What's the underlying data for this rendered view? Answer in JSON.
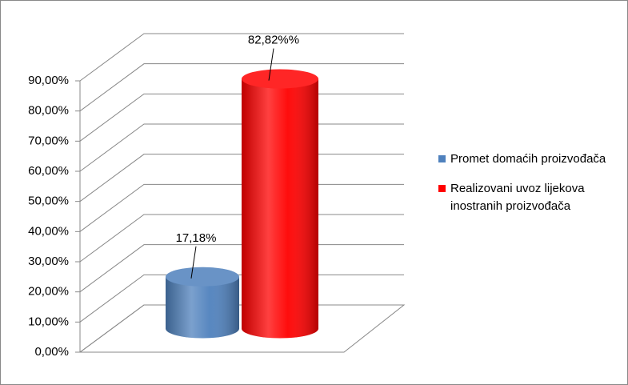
{
  "chart_data": {
    "type": "bar3d",
    "categories": [
      null
    ],
    "series": [
      {
        "name": "Promet domaćih proizvođača",
        "color": "#4f81bd",
        "values": [
          17.18
        ],
        "value_labels": [
          "17,18%"
        ]
      },
      {
        "name": "Realizovani uvoz lijekova inostranih proizvođača",
        "color": "#ff0000",
        "values": [
          82.82
        ],
        "value_labels": [
          "82,82%%"
        ]
      }
    ],
    "ylim": [
      0,
      90
    ],
    "yticks": [
      {
        "value": 0,
        "label": "0,00%"
      },
      {
        "value": 10,
        "label": "10,00%"
      },
      {
        "value": 20,
        "label": "20,00%"
      },
      {
        "value": 30,
        "label": "30,00%"
      },
      {
        "value": 40,
        "label": "40,00%"
      },
      {
        "value": 50,
        "label": "50,00%"
      },
      {
        "value": 60,
        "label": "60,00%"
      },
      {
        "value": 70,
        "label": "70,00%"
      },
      {
        "value": 80,
        "label": "80,00%"
      },
      {
        "value": 90,
        "label": "90,00%"
      }
    ],
    "grid": true,
    "legend": "right"
  }
}
